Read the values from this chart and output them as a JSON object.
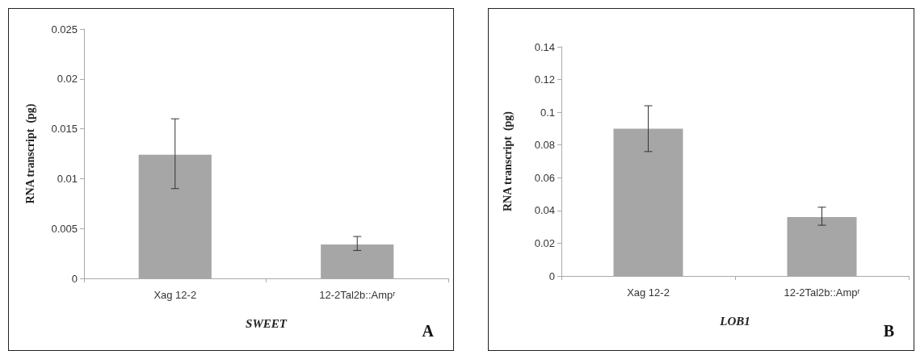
{
  "chart_data": [
    {
      "type": "bar",
      "categories": [
        "Xag 12-2",
        "12-2Tal2b::Ampʳ"
      ],
      "values": [
        0.0124,
        0.0034
      ],
      "errors": [
        [
          0.009,
          0.016
        ],
        [
          0.0028,
          0.0042
        ]
      ],
      "color": "#a6a6a6",
      "ylabel": "RNA transcript  (pg)",
      "xlabel": "SWEET",
      "annotations": [
        "A"
      ],
      "ylim": [
        0,
        0.025
      ],
      "yticks": [
        0,
        0.005,
        0.01,
        0.015,
        0.02,
        0.025
      ],
      "grid": false
    },
    {
      "type": "bar",
      "categories": [
        "Xag 12-2",
        "12-2Tal2b::Ampʳ"
      ],
      "values": [
        0.09,
        0.036
      ],
      "errors": [
        [
          0.076,
          0.104
        ],
        [
          0.031,
          0.042
        ]
      ],
      "color": "#a6a6a6",
      "ylabel": "RNA transcript  (pg)",
      "xlabel": "LOB1",
      "annotations": [
        "B"
      ],
      "ylim": [
        0,
        0.14
      ],
      "yticks": [
        0,
        0.02,
        0.04,
        0.06,
        0.08,
        0.1,
        0.12,
        0.14
      ],
      "grid": false
    }
  ]
}
